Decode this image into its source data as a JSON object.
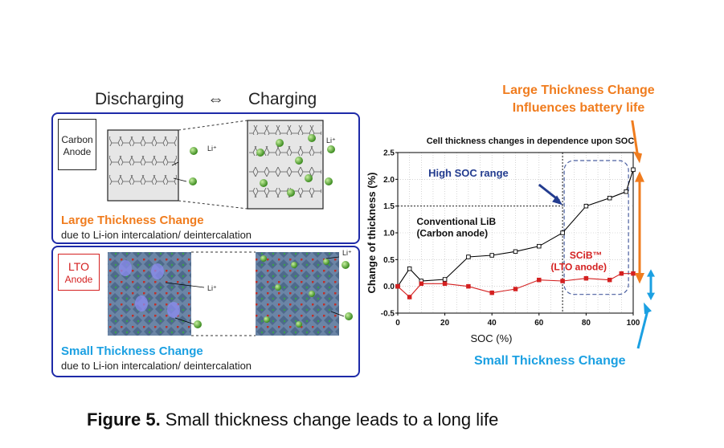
{
  "header": {
    "discharging": "Discharging",
    "arrow": "⇔",
    "charging": "Charging"
  },
  "top_panel": {
    "anode_label_line1": "Carbon",
    "anode_label_line2": "Anode",
    "li_label": "Li⁺",
    "title": "Large Thickness Change",
    "subtitle": "due to Li-ion intercalation/ deintercalation",
    "title_color": "#f07c1e"
  },
  "bottom_panel": {
    "anode_label_line1": "LTO",
    "anode_label_line2": "Anode",
    "li_label": "Li⁺",
    "title": "Small Thickness Change",
    "subtitle": "due to Li-ion intercalation/ deintercalation",
    "title_color": "#1ba0e2"
  },
  "right_annotations": {
    "large_line1": "Large Thickness Change",
    "large_line2": "Influences battery life",
    "small": "Small Thickness Change"
  },
  "caption": {
    "bold": "Figure 5.",
    "rest": " Small thickness change leads to a long life"
  },
  "chart_data": {
    "type": "line",
    "title": "Cell thickness changes in dependence upon SOC",
    "xlabel": "SOC (%)",
    "ylabel": "Change of thickness (%)",
    "xlim": [
      0,
      100
    ],
    "ylim": [
      -0.5,
      2.5
    ],
    "xticks": [
      0,
      20,
      40,
      60,
      80,
      100
    ],
    "yticks": [
      -0.5,
      0.0,
      0.5,
      1.0,
      1.5,
      2.0,
      2.5
    ],
    "ytick_labels": [
      "-0.5",
      "0.0",
      "0.5",
      "1.0",
      "1.5",
      "2.0",
      "2.5"
    ],
    "grid": true,
    "series": [
      {
        "name": "Conventional LiB (Carbon anode)",
        "label_line1": "Conventional LiB",
        "label_line2": "(Carbon anode)",
        "color": "#000000",
        "marker": "open-square",
        "x": [
          0,
          5,
          10,
          20,
          30,
          40,
          50,
          60,
          70,
          80,
          90,
          97,
          100
        ],
        "y": [
          0.0,
          0.33,
          0.1,
          0.13,
          0.55,
          0.58,
          0.65,
          0.75,
          1.0,
          1.5,
          1.65,
          1.77,
          2.18
        ]
      },
      {
        "name": "SCiB™ (LTO anode)",
        "label_line1": "SCiB™",
        "label_line2": "(LTO anode)",
        "color": "#d42020",
        "marker": "filled-square",
        "x": [
          0,
          5,
          10,
          20,
          30,
          40,
          50,
          60,
          70,
          80,
          90,
          95,
          100
        ],
        "y": [
          0.0,
          -0.2,
          0.05,
          0.05,
          0.0,
          -0.12,
          -0.05,
          0.12,
          0.1,
          0.15,
          0.12,
          0.24,
          0.24
        ]
      }
    ],
    "annotations": {
      "high_soc_range": "High SOC range",
      "high_soc_color": "#233c8f",
      "high_soc_x_start": 70,
      "ref_line_y": 1.5
    }
  }
}
